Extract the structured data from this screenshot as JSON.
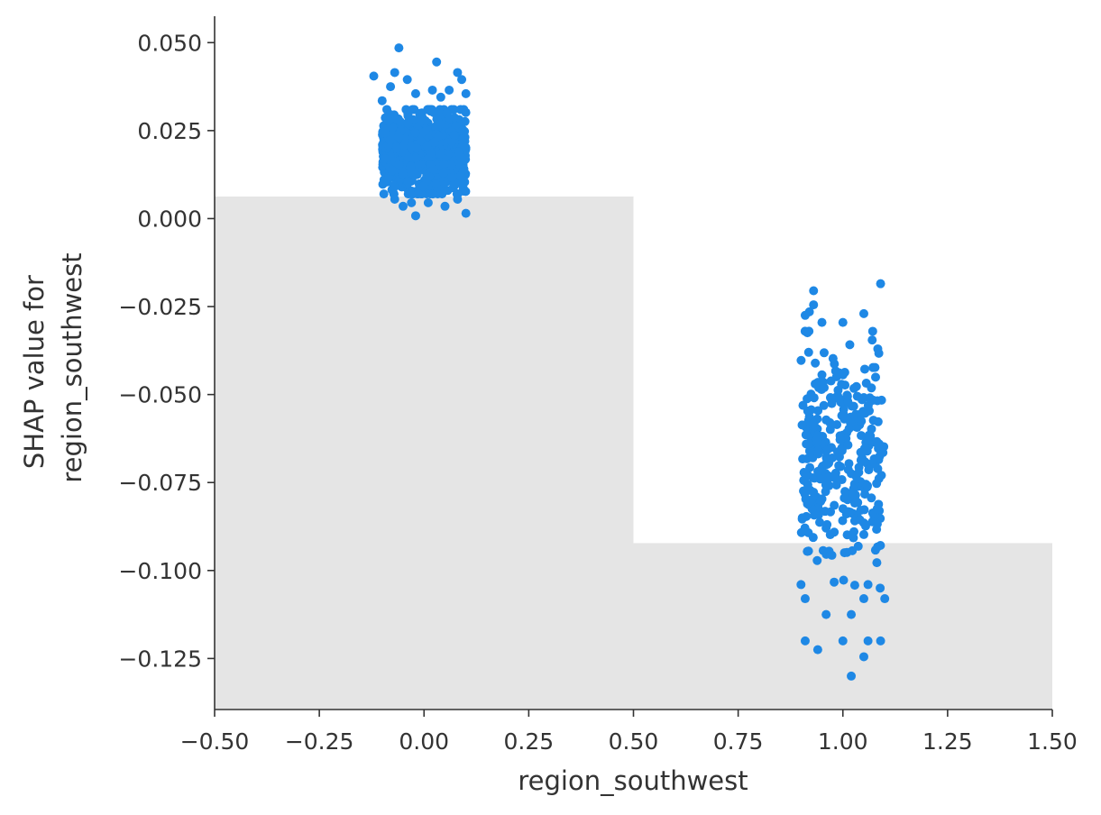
{
  "chart_data": {
    "type": "scatter",
    "title": "",
    "xlabel": "region_southwest",
    "ylabel_lines": [
      "SHAP value for",
      "region_southwest"
    ],
    "xlim": [
      -0.5,
      1.5
    ],
    "ylim": [
      -0.1395,
      0.0575
    ],
    "x_ticks": [
      -0.5,
      -0.25,
      0.0,
      0.25,
      0.5,
      0.75,
      1.0,
      1.25,
      1.5
    ],
    "x_tick_labels": [
      "−0.50",
      "−0.25",
      "0.00",
      "0.25",
      "0.50",
      "0.75",
      "1.00",
      "1.25",
      "1.50"
    ],
    "y_ticks": [
      0.05,
      0.025,
      0.0,
      -0.025,
      -0.05,
      -0.075,
      -0.1,
      -0.125
    ],
    "y_tick_labels": [
      "0.050",
      "0.025",
      "0.000",
      "−0.025",
      "−0.050",
      "−0.075",
      "−0.100",
      "−0.125"
    ],
    "grid": false,
    "legend": "none",
    "colors": {
      "points": "#1e88e5",
      "histogram": "#e5e5e5",
      "axis": "#333333"
    },
    "histogram_background": [
      {
        "x_range": [
          -0.5,
          0.5
        ],
        "relative_height": 0.74
      },
      {
        "x_range": [
          0.5,
          1.5
        ],
        "relative_height": 0.24
      }
    ],
    "groups": [
      {
        "x_center": 0.0,
        "jitter": 0.1,
        "n_points": 950,
        "core_range": [
          0.007,
          0.031
        ],
        "outliers": [
          {
            "x": -0.06,
            "y": 0.0485
          },
          {
            "x": 0.03,
            "y": 0.0445
          },
          {
            "x": -0.12,
            "y": 0.0405
          },
          {
            "x": -0.07,
            "y": 0.0415
          },
          {
            "x": 0.08,
            "y": 0.0415
          },
          {
            "x": 0.09,
            "y": 0.0395
          },
          {
            "x": -0.04,
            "y": 0.0395
          },
          {
            "x": -0.08,
            "y": 0.0375
          },
          {
            "x": 0.02,
            "y": 0.0365
          },
          {
            "x": 0.06,
            "y": 0.0365
          },
          {
            "x": 0.1,
            "y": 0.0355
          },
          {
            "x": -0.02,
            "y": 0.0355
          },
          {
            "x": 0.04,
            "y": 0.0345
          },
          {
            "x": -0.1,
            "y": 0.0335
          },
          {
            "x": -0.03,
            "y": 0.0045
          },
          {
            "x": 0.1,
            "y": 0.0015
          },
          {
            "x": -0.02,
            "y": 0.0008
          },
          {
            "x": -0.05,
            "y": 0.0035
          },
          {
            "x": 0.05,
            "y": 0.0035
          },
          {
            "x": -0.07,
            "y": 0.0055
          },
          {
            "x": 0.08,
            "y": 0.0055
          },
          {
            "x": 0.01,
            "y": 0.0045
          }
        ]
      },
      {
        "x_center": 1.0,
        "jitter": 0.1,
        "n_points": 320,
        "core_range": [
          -0.105,
          -0.032
        ],
        "outliers": [
          {
            "x": 1.09,
            "y": -0.0185
          },
          {
            "x": 0.93,
            "y": -0.0205
          },
          {
            "x": 0.93,
            "y": -0.0245
          },
          {
            "x": 0.92,
            "y": -0.0265
          },
          {
            "x": 0.91,
            "y": -0.0275
          },
          {
            "x": 1.05,
            "y": -0.027
          },
          {
            "x": 1.0,
            "y": -0.0295
          },
          {
            "x": 0.95,
            "y": -0.0295
          },
          {
            "x": 1.07,
            "y": -0.0345
          },
          {
            "x": 0.94,
            "y": -0.1225
          },
          {
            "x": 0.91,
            "y": -0.12
          },
          {
            "x": 1.0,
            "y": -0.12
          },
          {
            "x": 1.06,
            "y": -0.12
          },
          {
            "x": 1.09,
            "y": -0.12
          },
          {
            "x": 1.05,
            "y": -0.1245
          },
          {
            "x": 1.02,
            "y": -0.13
          },
          {
            "x": 0.96,
            "y": -0.1125
          },
          {
            "x": 1.02,
            "y": -0.1125
          },
          {
            "x": 1.05,
            "y": -0.108
          },
          {
            "x": 1.1,
            "y": -0.108
          },
          {
            "x": 0.91,
            "y": -0.108
          },
          {
            "x": 0.9,
            "y": -0.104
          },
          {
            "x": 1.06,
            "y": -0.104
          }
        ]
      }
    ]
  }
}
